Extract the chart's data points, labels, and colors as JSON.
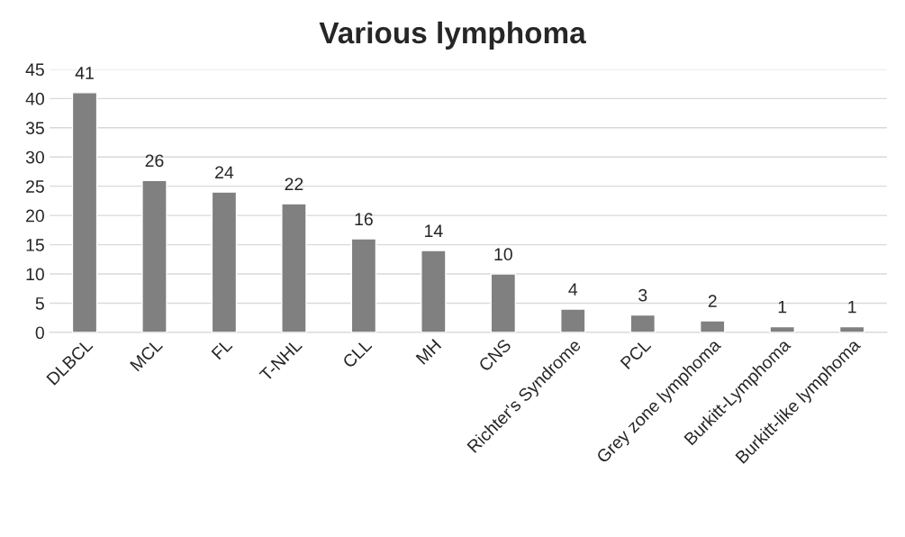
{
  "chart_data": {
    "type": "bar",
    "title": "Various lymphoma",
    "categories": [
      "DLBCL",
      "MCL",
      "FL",
      "T-NHL",
      "CLL",
      "MH",
      "CNS",
      "Richter's Syndrome",
      "PCL",
      "Grey zone lymphoma",
      "Burkitt-Lymphoma",
      "Burkitt-like lymphoma"
    ],
    "values": [
      41,
      26,
      24,
      22,
      16,
      14,
      10,
      4,
      3,
      2,
      1,
      1
    ],
    "color": "#808080",
    "ylim": [
      0,
      45
    ],
    "yticks": [
      0,
      5,
      10,
      15,
      20,
      25,
      30,
      35,
      40,
      45
    ],
    "grid": "y",
    "data_labels": true
  }
}
